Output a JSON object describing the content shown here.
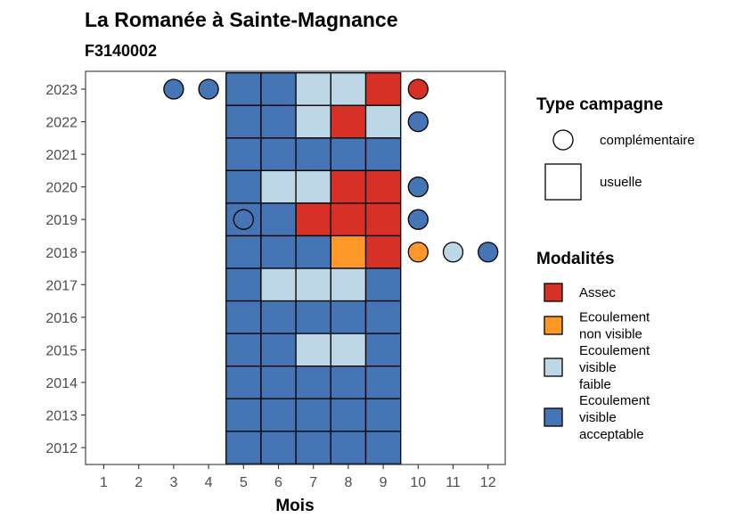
{
  "chart_data": {
    "type": "heatmap",
    "title": "La Romanée à Sainte-Magnance",
    "subtitle": "F3140002",
    "xlabel": "Mois",
    "ylabel": "",
    "x_ticks": [
      "1",
      "2",
      "3",
      "4",
      "5",
      "6",
      "7",
      "8",
      "9",
      "10",
      "11",
      "12"
    ],
    "y_ticks": [
      "2012",
      "2013",
      "2014",
      "2015",
      "2016",
      "2017",
      "2018",
      "2019",
      "2020",
      "2021",
      "2022",
      "2023"
    ],
    "grid": false,
    "colors": {
      "Assec": "#d73027",
      "Ecoulement non visible": "#fe9929",
      "Ecoulement visible faible": "#bdd7e7",
      "Ecoulement visible acceptable": "#4575b4"
    },
    "usuelle": [
      {
        "year": 2023,
        "cells": [
          [
            5,
            "Ecoulement visible acceptable"
          ],
          [
            6,
            "Ecoulement visible acceptable"
          ],
          [
            7,
            "Ecoulement visible faible"
          ],
          [
            8,
            "Ecoulement visible faible"
          ],
          [
            9,
            "Assec"
          ]
        ]
      },
      {
        "year": 2022,
        "cells": [
          [
            5,
            "Ecoulement visible acceptable"
          ],
          [
            6,
            "Ecoulement visible acceptable"
          ],
          [
            7,
            "Ecoulement visible faible"
          ],
          [
            8,
            "Assec"
          ],
          [
            9,
            "Ecoulement visible faible"
          ]
        ]
      },
      {
        "year": 2021,
        "cells": [
          [
            5,
            "Ecoulement visible acceptable"
          ],
          [
            6,
            "Ecoulement visible acceptable"
          ],
          [
            7,
            "Ecoulement visible acceptable"
          ],
          [
            8,
            "Ecoulement visible acceptable"
          ],
          [
            9,
            "Ecoulement visible acceptable"
          ]
        ]
      },
      {
        "year": 2020,
        "cells": [
          [
            5,
            "Ecoulement visible acceptable"
          ],
          [
            6,
            "Ecoulement visible faible"
          ],
          [
            7,
            "Ecoulement visible faible"
          ],
          [
            8,
            "Assec"
          ],
          [
            9,
            "Assec"
          ]
        ]
      },
      {
        "year": 2019,
        "cells": [
          [
            5,
            "Ecoulement visible acceptable"
          ],
          [
            6,
            "Ecoulement visible acceptable"
          ],
          [
            7,
            "Assec"
          ],
          [
            8,
            "Assec"
          ],
          [
            9,
            "Assec"
          ]
        ]
      },
      {
        "year": 2018,
        "cells": [
          [
            5,
            "Ecoulement visible acceptable"
          ],
          [
            6,
            "Ecoulement visible acceptable"
          ],
          [
            7,
            "Ecoulement visible acceptable"
          ],
          [
            8,
            "Ecoulement non visible"
          ],
          [
            9,
            "Assec"
          ]
        ]
      },
      {
        "year": 2017,
        "cells": [
          [
            5,
            "Ecoulement visible acceptable"
          ],
          [
            6,
            "Ecoulement visible faible"
          ],
          [
            7,
            "Ecoulement visible faible"
          ],
          [
            8,
            "Ecoulement visible faible"
          ],
          [
            9,
            "Ecoulement visible acceptable"
          ]
        ]
      },
      {
        "year": 2016,
        "cells": [
          [
            5,
            "Ecoulement visible acceptable"
          ],
          [
            6,
            "Ecoulement visible acceptable"
          ],
          [
            7,
            "Ecoulement visible acceptable"
          ],
          [
            8,
            "Ecoulement visible acceptable"
          ],
          [
            9,
            "Ecoulement visible acceptable"
          ]
        ]
      },
      {
        "year": 2015,
        "cells": [
          [
            5,
            "Ecoulement visible acceptable"
          ],
          [
            6,
            "Ecoulement visible acceptable"
          ],
          [
            7,
            "Ecoulement visible faible"
          ],
          [
            8,
            "Ecoulement visible faible"
          ],
          [
            9,
            "Ecoulement visible acceptable"
          ]
        ]
      },
      {
        "year": 2014,
        "cells": [
          [
            5,
            "Ecoulement visible acceptable"
          ],
          [
            6,
            "Ecoulement visible acceptable"
          ],
          [
            7,
            "Ecoulement visible acceptable"
          ],
          [
            8,
            "Ecoulement visible acceptable"
          ],
          [
            9,
            "Ecoulement visible acceptable"
          ]
        ]
      },
      {
        "year": 2013,
        "cells": [
          [
            5,
            "Ecoulement visible acceptable"
          ],
          [
            6,
            "Ecoulement visible acceptable"
          ],
          [
            7,
            "Ecoulement visible acceptable"
          ],
          [
            8,
            "Ecoulement visible acceptable"
          ],
          [
            9,
            "Ecoulement visible acceptable"
          ]
        ]
      },
      {
        "year": 2012,
        "cells": [
          [
            5,
            "Ecoulement visible acceptable"
          ],
          [
            6,
            "Ecoulement visible acceptable"
          ],
          [
            7,
            "Ecoulement visible acceptable"
          ],
          [
            8,
            "Ecoulement visible acceptable"
          ],
          [
            9,
            "Ecoulement visible acceptable"
          ]
        ]
      }
    ],
    "complementaire": [
      {
        "year": 2023,
        "month": 3,
        "modalite": "Ecoulement visible acceptable"
      },
      {
        "year": 2023,
        "month": 4,
        "modalite": "Ecoulement visible acceptable"
      },
      {
        "year": 2023,
        "month": 10,
        "modalite": "Assec"
      },
      {
        "year": 2022,
        "month": 10,
        "modalite": "Ecoulement visible acceptable"
      },
      {
        "year": 2020,
        "month": 10,
        "modalite": "Ecoulement visible acceptable"
      },
      {
        "year": 2019,
        "month": 5,
        "modalite": "Ecoulement visible acceptable"
      },
      {
        "year": 2019,
        "month": 10,
        "modalite": "Ecoulement visible acceptable"
      },
      {
        "year": 2018,
        "month": 10,
        "modalite": "Ecoulement non visible"
      },
      {
        "year": 2018,
        "month": 11,
        "modalite": "Ecoulement visible faible"
      },
      {
        "year": 2018,
        "month": 12,
        "modalite": "Ecoulement visible acceptable"
      }
    ]
  },
  "legend": {
    "type_title": "Type campagne",
    "type_items": [
      {
        "label": "complémentaire",
        "shape": "circle"
      },
      {
        "label": "usuelle",
        "shape": "square"
      }
    ],
    "modalites_title": "Modalités",
    "modalites_items": [
      {
        "key": "Assec",
        "lines": [
          "Assec"
        ]
      },
      {
        "key": "Ecoulement non visible",
        "lines": [
          "Ecoulement",
          "non visible"
        ]
      },
      {
        "key": "Ecoulement visible faible",
        "lines": [
          "Ecoulement",
          "visible",
          "faible"
        ]
      },
      {
        "key": "Ecoulement visible acceptable",
        "lines": [
          "Ecoulement",
          "visible",
          "acceptable"
        ]
      }
    ]
  }
}
